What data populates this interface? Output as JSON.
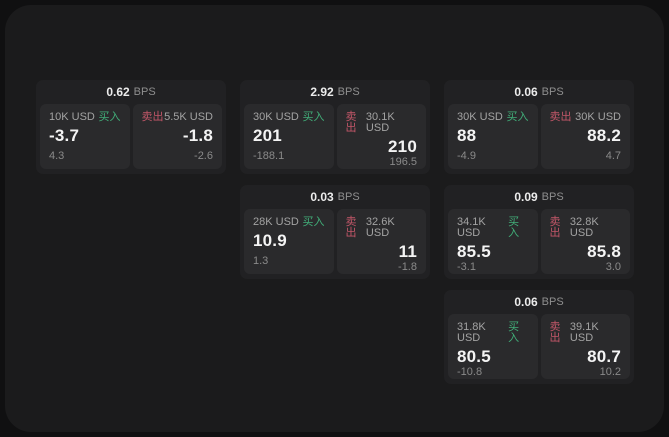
{
  "theme": {
    "page_bg": "#101011",
    "panel_bg": "#1b1b1c",
    "card_bg": "#212123",
    "subcard_bg": "#2a2a2c",
    "buy_color": "#41ae79",
    "sell_color": "#c25668"
  },
  "labels": {
    "bps_unit": "BPS",
    "buy": "买入",
    "sell": "卖出"
  },
  "cards": [
    {
      "row": 1,
      "col": 1,
      "bps": "0.62",
      "buy": {
        "amount": "10K USD",
        "price": "-3.7",
        "delta": "4.3"
      },
      "sell": {
        "amount": "5.5K USD",
        "price": "-1.8",
        "delta": "-2.6"
      }
    },
    {
      "row": 1,
      "col": 2,
      "bps": "2.92",
      "buy": {
        "amount": "30K USD",
        "price": "201",
        "delta": "-188.1"
      },
      "sell": {
        "amount": "30.1K USD",
        "price": "210",
        "delta": "196.5"
      }
    },
    {
      "row": 1,
      "col": 3,
      "bps": "0.06",
      "buy": {
        "amount": "30K USD",
        "price": "88",
        "delta": "-4.9"
      },
      "sell": {
        "amount": "30K USD",
        "price": "88.2",
        "delta": "4.7"
      }
    },
    {
      "row": 2,
      "col": 2,
      "bps": "0.03",
      "buy": {
        "amount": "28K USD",
        "price": "10.9",
        "delta": "1.3"
      },
      "sell": {
        "amount": "32.6K USD",
        "price": "11",
        "delta": "-1.8"
      }
    },
    {
      "row": 2,
      "col": 3,
      "bps": "0.09",
      "buy": {
        "amount": "34.1K USD",
        "price": "85.5",
        "delta": "-3.1"
      },
      "sell": {
        "amount": "32.8K USD",
        "price": "85.8",
        "delta": "3.0"
      }
    },
    {
      "row": 3,
      "col": 3,
      "bps": "0.06",
      "buy": {
        "amount": "31.8K USD",
        "price": "80.5",
        "delta": "-10.8"
      },
      "sell": {
        "amount": "39.1K USD",
        "price": "80.7",
        "delta": "10.2"
      }
    }
  ]
}
